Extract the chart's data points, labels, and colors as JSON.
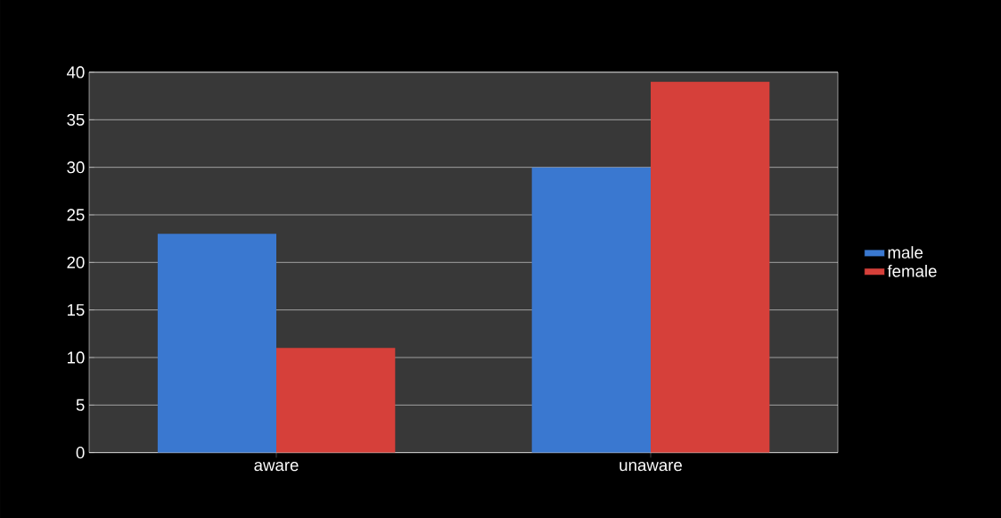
{
  "chart_data": {
    "type": "bar",
    "categories": [
      "aware",
      "unaware"
    ],
    "series": [
      {
        "name": "male",
        "color": "#3a78d0",
        "values": [
          23,
          30
        ]
      },
      {
        "name": "female",
        "color": "#d6403a",
        "values": [
          11,
          39
        ]
      }
    ],
    "ylim": [
      0,
      40
    ],
    "yticks": [
      0,
      5,
      10,
      15,
      20,
      25,
      30,
      35,
      40
    ],
    "grid": "y",
    "legend": "right"
  }
}
